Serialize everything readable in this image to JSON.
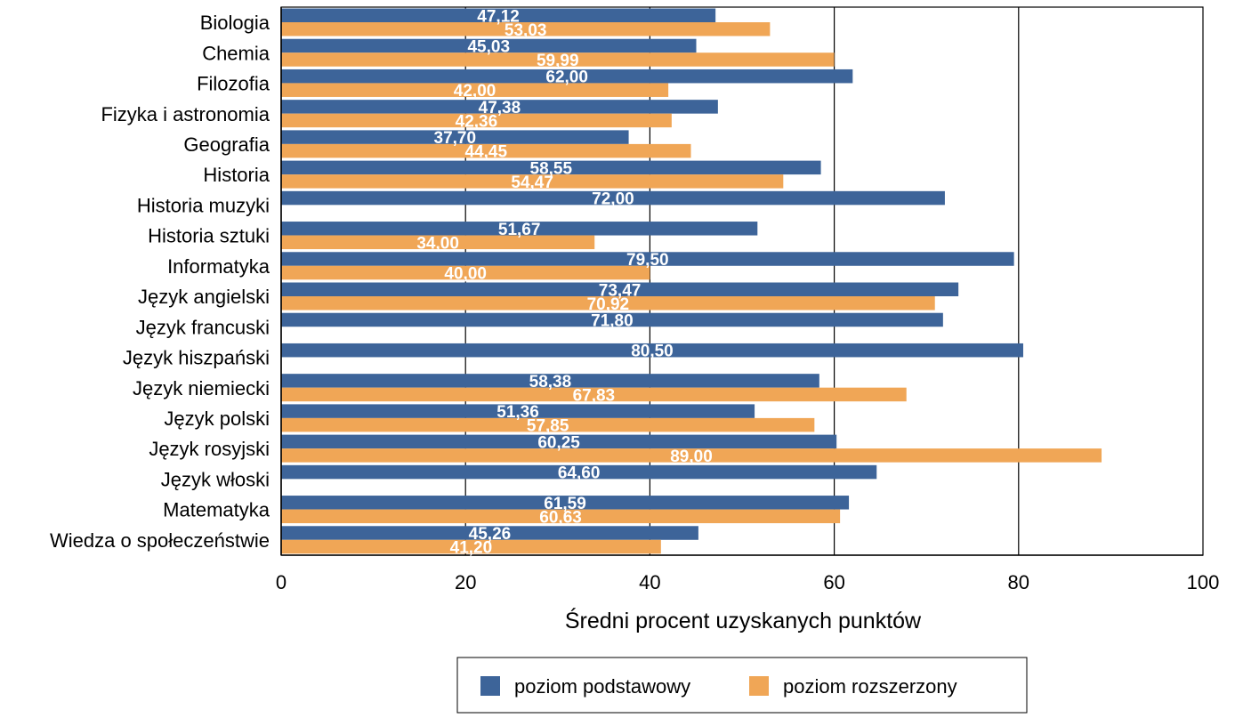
{
  "chart_data": {
    "type": "bar",
    "orientation": "horizontal",
    "categories": [
      "Biologia",
      "Chemia",
      "Filozofia",
      "Fizyka i astronomia",
      "Geografia",
      "Historia",
      "Historia muzyki",
      "Historia sztuki",
      "Informatyka",
      "Język angielski",
      "Język francuski",
      "Język hiszpański",
      "Język niemiecki",
      "Język polski",
      "Język rosyjski",
      "Język włoski",
      "Matematyka",
      "Wiedza o społeczeństwie"
    ],
    "series": [
      {
        "name": "poziom podstawowy",
        "color": "#3d6499",
        "values": [
          47.12,
          45.03,
          62.0,
          47.38,
          37.7,
          58.55,
          72.0,
          51.67,
          79.5,
          73.47,
          71.8,
          80.5,
          58.38,
          51.36,
          60.25,
          64.6,
          61.59,
          45.26
        ],
        "labels": [
          "47,12",
          "45,03",
          "62,00",
          "47,38",
          "37,70",
          "58,55",
          "72,00",
          "51,67",
          "79,50",
          "73,47",
          "71,80",
          "80,50",
          "58,38",
          "51,36",
          "60,25",
          "64,60",
          "61,59",
          "45,26"
        ]
      },
      {
        "name": "poziom rozszerzony",
        "color": "#f0a656",
        "values": [
          53.03,
          59.99,
          42.0,
          42.36,
          44.45,
          54.47,
          null,
          34.0,
          40.0,
          70.92,
          null,
          null,
          67.83,
          57.85,
          89.0,
          null,
          60.63,
          41.2
        ],
        "labels": [
          "53,03",
          "59,99",
          "42,00",
          "42,36",
          "44,45",
          "54,47",
          null,
          "34,00",
          "40,00",
          "70,92",
          null,
          null,
          "67,83",
          "57,85",
          "89,00",
          null,
          "60,63",
          "41,20"
        ]
      }
    ],
    "xlabel": "Średni procent uzyskanych punktów",
    "xlim": [
      0,
      100
    ],
    "xticks": [
      0,
      20,
      40,
      60,
      80,
      100
    ],
    "grid": "vertical",
    "legend_position": "bottom-center"
  }
}
